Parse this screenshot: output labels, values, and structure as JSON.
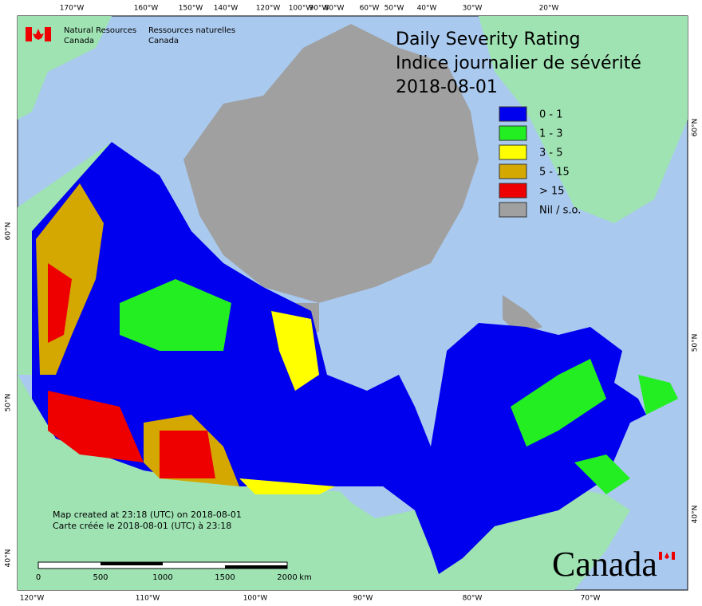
{
  "header": {
    "agency_en": [
      "Natural Resources",
      "Canada"
    ],
    "agency_fr": [
      "Ressources naturelles",
      "Canada"
    ]
  },
  "title": [
    "Daily Severity Rating",
    "Indice journalier de sévérité",
    "2018-08-01"
  ],
  "legend": [
    {
      "label": "0 - 1",
      "color": "#0000ee"
    },
    {
      "label": "1 - 3",
      "color": "#22ee22"
    },
    {
      "label": "3 - 5",
      "color": "#ffff00"
    },
    {
      "label": "5 - 15",
      "color": "#d4a800"
    },
    {
      "label": "> 15",
      "color": "#ee0000"
    },
    {
      "label": "Nil / s.o.",
      "color": "#a0a0a0"
    }
  ],
  "graticule": {
    "top": [
      "170°W",
      "160°W",
      "150°W",
      "140°W",
      "120°W",
      "100°W",
      "90°W",
      "80°W",
      "60°W",
      "50°W",
      "40°W",
      "30°W",
      "20°W"
    ],
    "bottom": [
      "120°W",
      "110°W",
      "100°W",
      "90°W",
      "80°W",
      "70°W"
    ],
    "left": [
      "60°N",
      "50°N",
      "40°N"
    ],
    "right": [
      "60°N",
      "50°N",
      "40°N"
    ]
  },
  "footer": {
    "created": [
      "Map created at 23:18 (UTC) on 2018-08-01",
      "Carte créée le 2018-08-01 (UTC) à 23:18"
    ],
    "scale": [
      "0",
      "500",
      "1000",
      "1500",
      "2000",
      "km"
    ],
    "wordmark": "Canada"
  }
}
